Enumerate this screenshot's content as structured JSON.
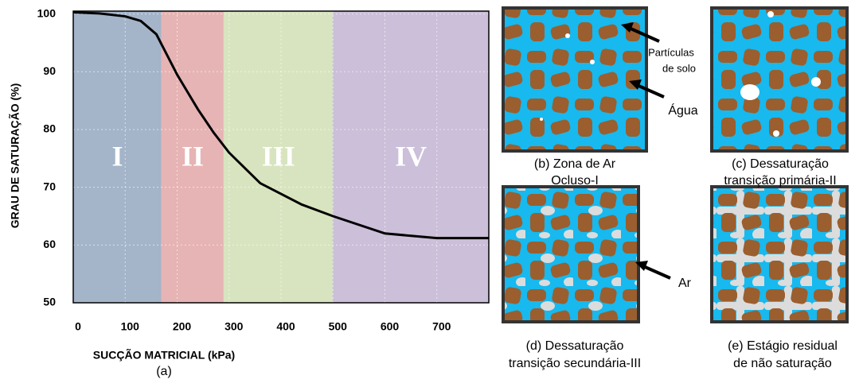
{
  "chart_data": {
    "type": "line",
    "xlabel": "SUCÇÃO MATRICIAL (kPa)",
    "ylabel": "GRAU DE SATURAÇÃO (%)",
    "sublabel": "(a)",
    "x": [
      0,
      50,
      100,
      130,
      160,
      200,
      240,
      270,
      300,
      360,
      440,
      500,
      600,
      700,
      800
    ],
    "values": [
      100.3,
      100.1,
      99.6,
      98.8,
      96.5,
      89.5,
      83.5,
      79.5,
      76,
      70.7,
      67,
      65,
      62,
      61.2,
      61.2
    ],
    "color": "#000000",
    "xlim": [
      0,
      800
    ],
    "xticks": [
      0,
      100,
      200,
      300,
      400,
      500,
      600,
      700
    ],
    "ylim": [
      50,
      100.5
    ],
    "yticks": [
      50,
      60,
      70,
      80,
      90,
      100
    ],
    "grid": true,
    "zones": [
      {
        "label": "I",
        "start": 0,
        "end": 170,
        "color": "#a4b4c9"
      },
      {
        "label": "II",
        "start": 170,
        "end": 290,
        "color": "#e6b4b4"
      },
      {
        "label": "III",
        "start": 290,
        "end": 500,
        "color": "#d8e4bf"
      },
      {
        "label": "IV",
        "start": 500,
        "end": 800,
        "color": "#cbbfd9"
      }
    ]
  },
  "panels": [
    {
      "caption": [
        "(b) Zona de Ar",
        "Ocluso-I"
      ]
    },
    {
      "caption": [
        "(c) Dessaturação",
        "transição primária-II"
      ]
    },
    {
      "caption": [
        "(d) Dessaturação",
        "transição secundária-III"
      ]
    },
    {
      "caption": [
        "(e) Estágio residual",
        "de não saturação"
      ]
    }
  ],
  "annotations": {
    "particles": [
      "Partículas",
      "de solo"
    ],
    "water": "Água",
    "air": "Ar"
  }
}
